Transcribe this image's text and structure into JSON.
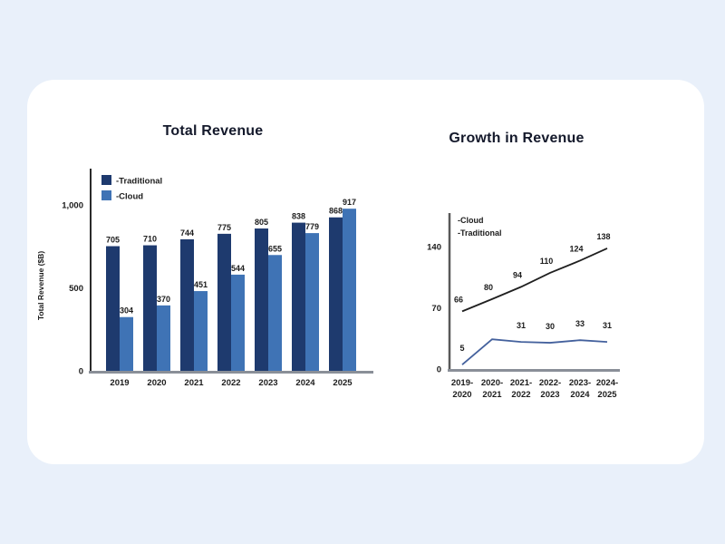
{
  "page": {
    "background_color": "#e9f0fa",
    "card_color": "#ffffff",
    "title_color": "#14192b",
    "label_color": "#1b1b1b"
  },
  "chart_data": [
    {
      "type": "bar",
      "title": "Total Revenue",
      "xlabel": "",
      "ylabel": "Total Revenue ($B)",
      "categories": [
        "2019",
        "2020",
        "2021",
        "2022",
        "2023",
        "2024",
        "2025"
      ],
      "series": [
        {
          "name": "-Traditional",
          "color": "#1e3a6e",
          "values": [
            705,
            710,
            744,
            775,
            805,
            838,
            868
          ]
        },
        {
          "name": "-Cloud",
          "color": "#3f73b5",
          "values": [
            304,
            370,
            451,
            544,
            655,
            779,
            917
          ]
        }
      ],
      "yticks": [
        0,
        500,
        1000
      ],
      "ytick_labels": [
        "0",
        "500",
        "1,000"
      ],
      "ylim": [
        0,
        1200
      ],
      "grid": false,
      "legend_position": "top-left",
      "axis_colors": {
        "y_axis": "#2b2b2b",
        "x_axis": "#8a8f98"
      }
    },
    {
      "type": "line",
      "title": "Growth in Revenue",
      "xlabel": "",
      "ylabel": "",
      "categories": [
        "2019-2020",
        "2020-2021",
        "2021-2022",
        "2022-2023",
        "2023-2024",
        "2024-2025"
      ],
      "series": [
        {
          "name": "-Cloud",
          "color": "#1f1f1f",
          "values": [
            66,
            80,
            94,
            110,
            124,
            138
          ],
          "point_labels": [
            "66",
            "80",
            "94",
            "110",
            "124",
            "138"
          ]
        },
        {
          "name": "-Traditional",
          "color": "#44619d",
          "values": [
            5,
            34,
            31,
            30,
            33,
            31
          ],
          "point_labels": [
            "5",
            "",
            "31",
            "30",
            "33",
            "31"
          ]
        }
      ],
      "yticks": [
        0,
        70,
        140
      ],
      "ytick_labels": [
        "0",
        "70",
        "140"
      ],
      "ylim": [
        0,
        180
      ],
      "grid": false,
      "legend_position": "top-left",
      "axis_colors": {
        "y_axis": "#5a5a5a",
        "x_axis": "#8a8f98"
      }
    }
  ]
}
